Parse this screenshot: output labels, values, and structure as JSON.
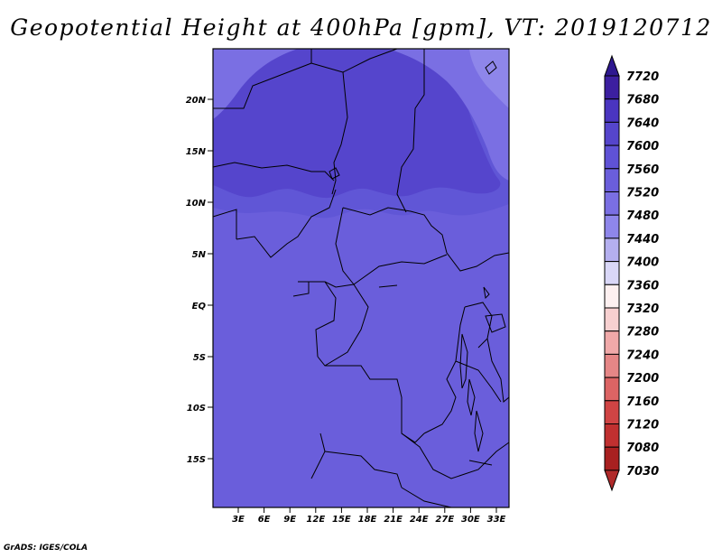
{
  "title": "Geopotential Height at 400hPa [gpm], VT: 2019120712",
  "credit": "GrADS: IGES/COLA",
  "map": {
    "lat_ticks": [
      "20N",
      "15N",
      "10N",
      "5N",
      "EQ",
      "5S",
      "10S",
      "15S"
    ],
    "lon_ticks": [
      "3E",
      "6E",
      "9E",
      "12E",
      "15E",
      "18E",
      "21E",
      "24E",
      "27E",
      "30E",
      "33E"
    ]
  },
  "colorbar": {
    "levels": [
      "7720",
      "7680",
      "7640",
      "7600",
      "7560",
      "7520",
      "7480",
      "7440",
      "7400",
      "7360",
      "7320",
      "7280",
      "7240",
      "7200",
      "7160",
      "7120",
      "7080",
      "7030"
    ],
    "colors": [
      "#3c1fa0",
      "#4a35c0",
      "#5545cc",
      "#5f52d6",
      "#6a5edb",
      "#7a6fe3",
      "#8e86ea",
      "#b4afef",
      "#d9d7f7",
      "#fdf0f0",
      "#f7d0d0",
      "#f0a9a9",
      "#e58686",
      "#dc6464",
      "#d04444",
      "#c03030",
      "#a82020"
    ],
    "top_color": "#2e1890",
    "bottom_color": "#b02a2a"
  },
  "fill_colors": {
    "base": "#6a5edb",
    "mid": "#6056d6",
    "north": "#5545cc",
    "corner_light": "#7a6fe3",
    "corner_lighter": "#8e86ea"
  }
}
